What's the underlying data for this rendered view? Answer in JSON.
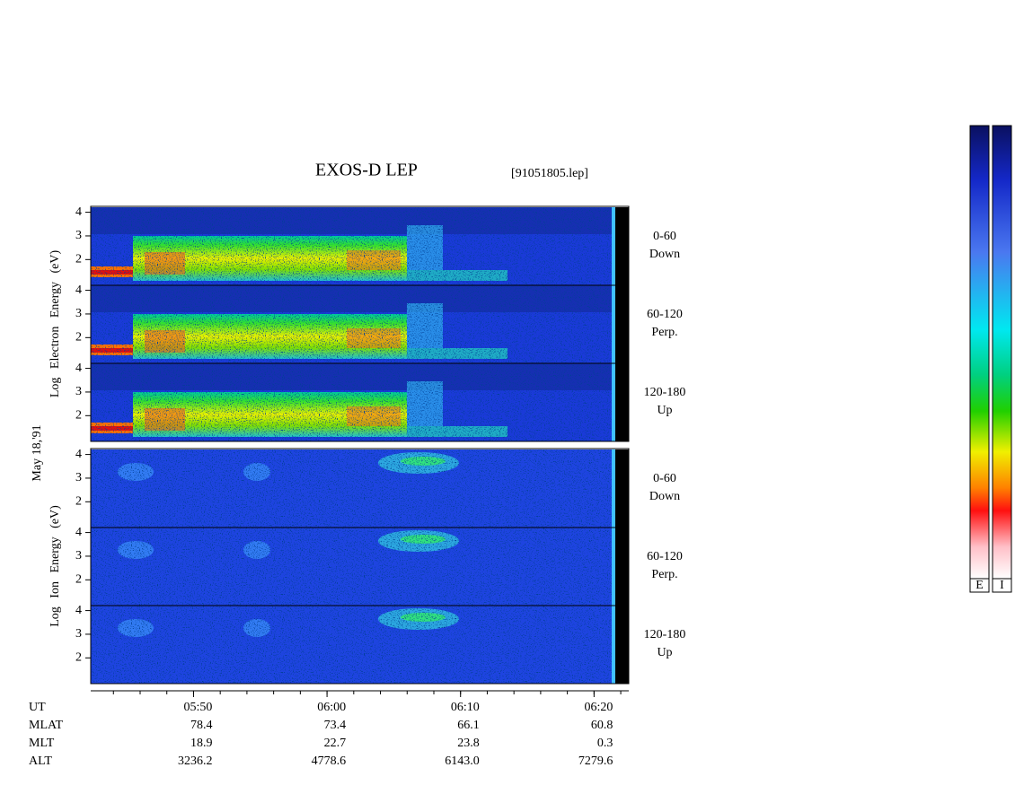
{
  "chart_data": {
    "type": "spectrogram",
    "title": "EXOS-D LEP",
    "subtitle": "[91051805.lep]",
    "date_label": "May 18,'91",
    "ylim": [
      0.95,
      4.25
    ],
    "yticks": [
      2,
      3,
      4
    ],
    "xlim": [
      342.3,
      382.6
    ],
    "xticks": [
      {
        "value": 350,
        "label": "05:50"
      },
      {
        "value": 360,
        "label": "06:00"
      },
      {
        "value": 370,
        "label": "06:10"
      },
      {
        "value": 380,
        "label": "06:20"
      }
    ],
    "x_label": "UT",
    "groups": [
      {
        "ylabel": "Log Electron Energy (eV)",
        "panels": [
          {
            "label": [
              "0-60",
              "Down"
            ]
          },
          {
            "label": [
              "60-120",
              "Perp."
            ]
          },
          {
            "label": [
              "120-180",
              "Up"
            ]
          }
        ]
      },
      {
        "ylabel": "Log Ion Energy (eV)",
        "panels": [
          {
            "label": [
              "0-60",
              "Down"
            ]
          },
          {
            "label": [
              "60-120",
              "Perp."
            ]
          },
          {
            "label": [
              "120-180",
              "Up"
            ]
          }
        ]
      }
    ],
    "ephemeris": [
      {
        "name": "MLAT",
        "values": [
          "78.4",
          "73.4",
          "66.1",
          "60.8"
        ]
      },
      {
        "name": "MLT",
        "values": [
          "18.9",
          "22.7",
          "23.8",
          "0.3"
        ]
      },
      {
        "name": "ALT",
        "values": [
          "3236.2",
          "4778.6",
          "6143.0",
          "7279.6"
        ]
      }
    ],
    "colorbar_labels": [
      "E",
      "I"
    ]
  }
}
